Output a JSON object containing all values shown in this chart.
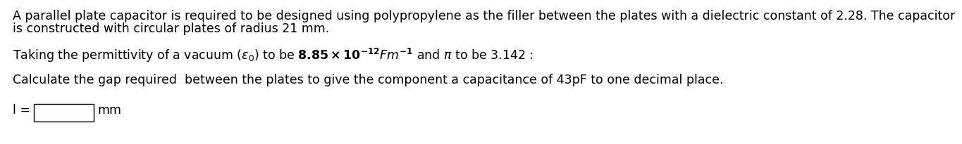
{
  "line1": "A parallel plate capacitor is required to be designed using polypropylene as the filler between the plates with a dielectric constant of 2.28. The capacitor",
  "line2": "is constructed with circular plates of radius 21 mm.",
  "line3_text": "Taking the permittivity of a vacuum (ε0) to be 8.85 × 10⁻¹²Fm⁻¹ and π to be 3.142 :",
  "line4": "Calculate the gap required  between the plates to give the component a capacitance of 43pF to one decimal place.",
  "label_l": "l =",
  "label_mm": "mm",
  "bg_color": "#ffffff",
  "text_color": "#000000",
  "font_size": 12.5
}
